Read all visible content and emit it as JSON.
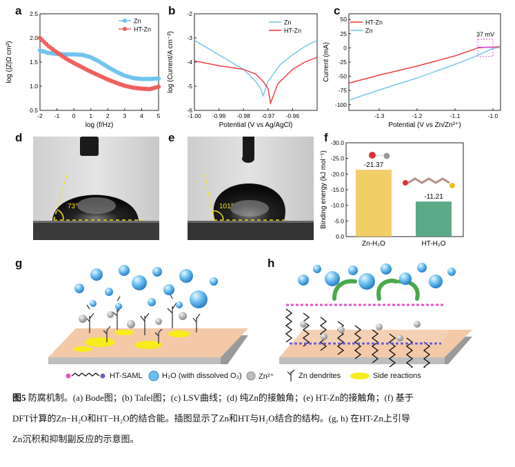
{
  "panels": {
    "a": {
      "label": "a"
    },
    "b": {
      "label": "b"
    },
    "c": {
      "label": "c"
    },
    "d": {
      "label": "d"
    },
    "e": {
      "label": "e"
    },
    "f": {
      "label": "f"
    },
    "g": {
      "label": "g"
    },
    "h": {
      "label": "h"
    }
  },
  "chart_data": [
    {
      "id": "a",
      "type": "scatter",
      "title": "Bode",
      "xlabel": "log (f/Hz)",
      "ylabel": "log (|Z|Ω cm²)",
      "xlim": [
        -2,
        5
      ],
      "ylim": [
        0.5,
        2.5
      ],
      "xticks": [
        "-2",
        "-1",
        "0",
        "1",
        "2",
        "3",
        "4",
        "5"
      ],
      "yticks": [
        "0.5",
        "1.0",
        "1.5",
        "2.0",
        "2.5"
      ],
      "legend": [
        "Zn",
        "HT-Zn"
      ],
      "series": [
        {
          "name": "Zn",
          "color": "#6cc3ec",
          "x": [
            -2,
            -1.5,
            -1,
            -0.5,
            0,
            0.5,
            1,
            1.5,
            2,
            2.5,
            3,
            3.5,
            4,
            4.5,
            5
          ],
          "y": [
            1.74,
            1.69,
            1.67,
            1.66,
            1.66,
            1.65,
            1.6,
            1.51,
            1.4,
            1.3,
            1.22,
            1.17,
            1.15,
            1.15,
            1.16
          ]
        },
        {
          "name": "HT-Zn",
          "color": "#ef5b5b",
          "x": [
            -2,
            -1.5,
            -1,
            -0.5,
            0,
            0.5,
            1,
            1.5,
            2,
            2.5,
            3,
            3.5,
            4,
            4.5,
            5
          ],
          "y": [
            2.0,
            1.83,
            1.7,
            1.58,
            1.48,
            1.39,
            1.3,
            1.22,
            1.14,
            1.07,
            1.01,
            0.97,
            0.95,
            0.94,
            0.99
          ]
        }
      ]
    },
    {
      "id": "b",
      "type": "line",
      "title": "Tafel",
      "xlabel": "Potential (V vs Ag/AgCl)",
      "ylabel": "log (Current/A cm⁻²)",
      "xlim": [
        -1.0,
        -0.95
      ],
      "ylim": [
        -6,
        -2
      ],
      "xticks": [
        "-1.00",
        "-0.99",
        "-0.98",
        "-0.97",
        "-0.96"
      ],
      "yticks": [
        "-6",
        "-5",
        "-4",
        "-3",
        "-2"
      ],
      "legend": [
        "Zn",
        "HT-Zn"
      ],
      "series": [
        {
          "name": "Zn",
          "color": "#6cc3ec",
          "x": [
            -1.0,
            -0.99,
            -0.98,
            -0.975,
            -0.973,
            -0.972,
            -0.97,
            -0.965,
            -0.96,
            -0.955,
            -0.95
          ],
          "y": [
            -3.1,
            -3.7,
            -4.3,
            -4.8,
            -5.1,
            -5.4,
            -4.8,
            -4.1,
            -3.7,
            -3.35,
            -3.1
          ]
        },
        {
          "name": "HT-Zn",
          "color": "#ef3030",
          "x": [
            -1.0,
            -0.99,
            -0.98,
            -0.975,
            -0.972,
            -0.97,
            -0.969,
            -0.966,
            -0.96,
            -0.955,
            -0.95
          ],
          "y": [
            -3.95,
            -4.15,
            -4.3,
            -4.5,
            -4.8,
            -5.1,
            -5.7,
            -4.9,
            -4.3,
            -4.0,
            -3.8
          ]
        }
      ]
    },
    {
      "id": "c",
      "type": "line",
      "title": "LSV",
      "xlabel": "Potential (V vs Zn/Zn²⁺)",
      "ylabel": "Current (mA)",
      "xlim": [
        -1.38,
        -0.98
      ],
      "ylim": [
        -110,
        60
      ],
      "xticks": [
        "-1.3",
        "-1.2",
        "-1.1",
        "-1.0"
      ],
      "yticks": [
        "-100",
        "-75",
        "-50",
        "-25",
        "0",
        "25",
        "50"
      ],
      "legend": [
        "HT-Zn",
        "Zn"
      ],
      "annotation": "37 mV",
      "series": [
        {
          "name": "HT-Zn",
          "color": "#ef3030",
          "x": [
            -1.38,
            -1.3,
            -1.2,
            -1.1,
            -1.06,
            -1.04,
            -1.02,
            -1.0,
            -0.98
          ],
          "y": [
            -62,
            -48,
            -32,
            -14,
            -5,
            0,
            1,
            1.5,
            2
          ]
        },
        {
          "name": "Zn",
          "color": "#6cc3ec",
          "x": [
            -1.38,
            -1.3,
            -1.2,
            -1.1,
            -1.05,
            -1.02,
            -1.0,
            -0.98
          ],
          "y": [
            -92,
            -74,
            -53,
            -29,
            -16,
            -7,
            -1,
            1
          ]
        }
      ]
    },
    {
      "id": "f",
      "type": "bar",
      "title": "Binding energy",
      "xlabel": "",
      "ylabel": "Binding energy (kJ mol⁻¹)",
      "ylim": [
        0,
        -30
      ],
      "yticks": [
        "0.0",
        "-5.0",
        "-10.0",
        "-15.0",
        "-20.0",
        "-25.0",
        "-30.0"
      ],
      "categories": [
        "Zn-H₂O",
        "HT-H₂O"
      ],
      "values": [
        -21.37,
        -11.21
      ],
      "value_labels": [
        "-21.37",
        "-11.21"
      ],
      "colors": [
        "#f0c64f",
        "#3f9a72"
      ]
    }
  ],
  "photos": {
    "d": {
      "angle_label": "73°",
      "angle_deg": 73
    },
    "e": {
      "angle_label": "101°",
      "angle_deg": 101
    }
  },
  "legend_bottom": {
    "ht_saml": "HT-SAML",
    "h2o": "H₂O (with dissolved O₂)",
    "zn2": "Zn²⁺",
    "dendrites": "Zn dendrites",
    "side": "Side reactions"
  },
  "caption": {
    "fig": "图5",
    "line1": " 防腐机制。(a) Bode图；(b) Tafel图；(c) LSV曲线；(d) 纯Zn的接触角；(e) HT-Zn的接触角；(f) 基于",
    "line2": "DFT计算的Zn−H₂O和HT−H₂O的结合能。插图显示了Zn和HT与H₂O结合的结构。(g, h) 在HT-Zn上引导",
    "line3": "Zn沉积和抑制副反应的示意图。"
  }
}
